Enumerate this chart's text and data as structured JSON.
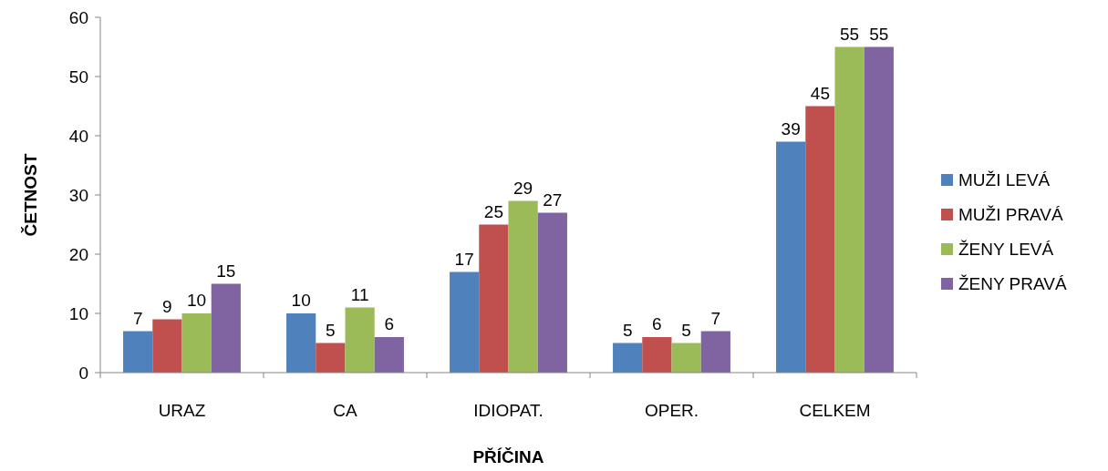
{
  "chart_data": {
    "type": "bar",
    "xlabel": "PŘÍČINA",
    "ylabel": "ČETNOST",
    "categories": [
      "URAZ",
      "CA",
      "IDIOPAT.",
      "OPER.",
      "CELKEM"
    ],
    "series": [
      {
        "name": "MUŽI LEVÁ",
        "color": "#4f81bd",
        "values": [
          7,
          10,
          17,
          5,
          39
        ]
      },
      {
        "name": "MUŽI PRAVÁ",
        "color": "#c0504d",
        "values": [
          9,
          5,
          25,
          6,
          45
        ]
      },
      {
        "name": "ŽENY LEVÁ",
        "color": "#9bbb59",
        "values": [
          10,
          11,
          29,
          5,
          55
        ]
      },
      {
        "name": "ŽENY PRAVÁ",
        "color": "#8064a2",
        "values": [
          15,
          6,
          27,
          7,
          55
        ]
      }
    ],
    "ylim": [
      0,
      60
    ],
    "yticks": [
      0,
      10,
      20,
      30,
      40,
      50,
      60
    ],
    "data_labels": true,
    "legend": "right",
    "grid": false
  }
}
